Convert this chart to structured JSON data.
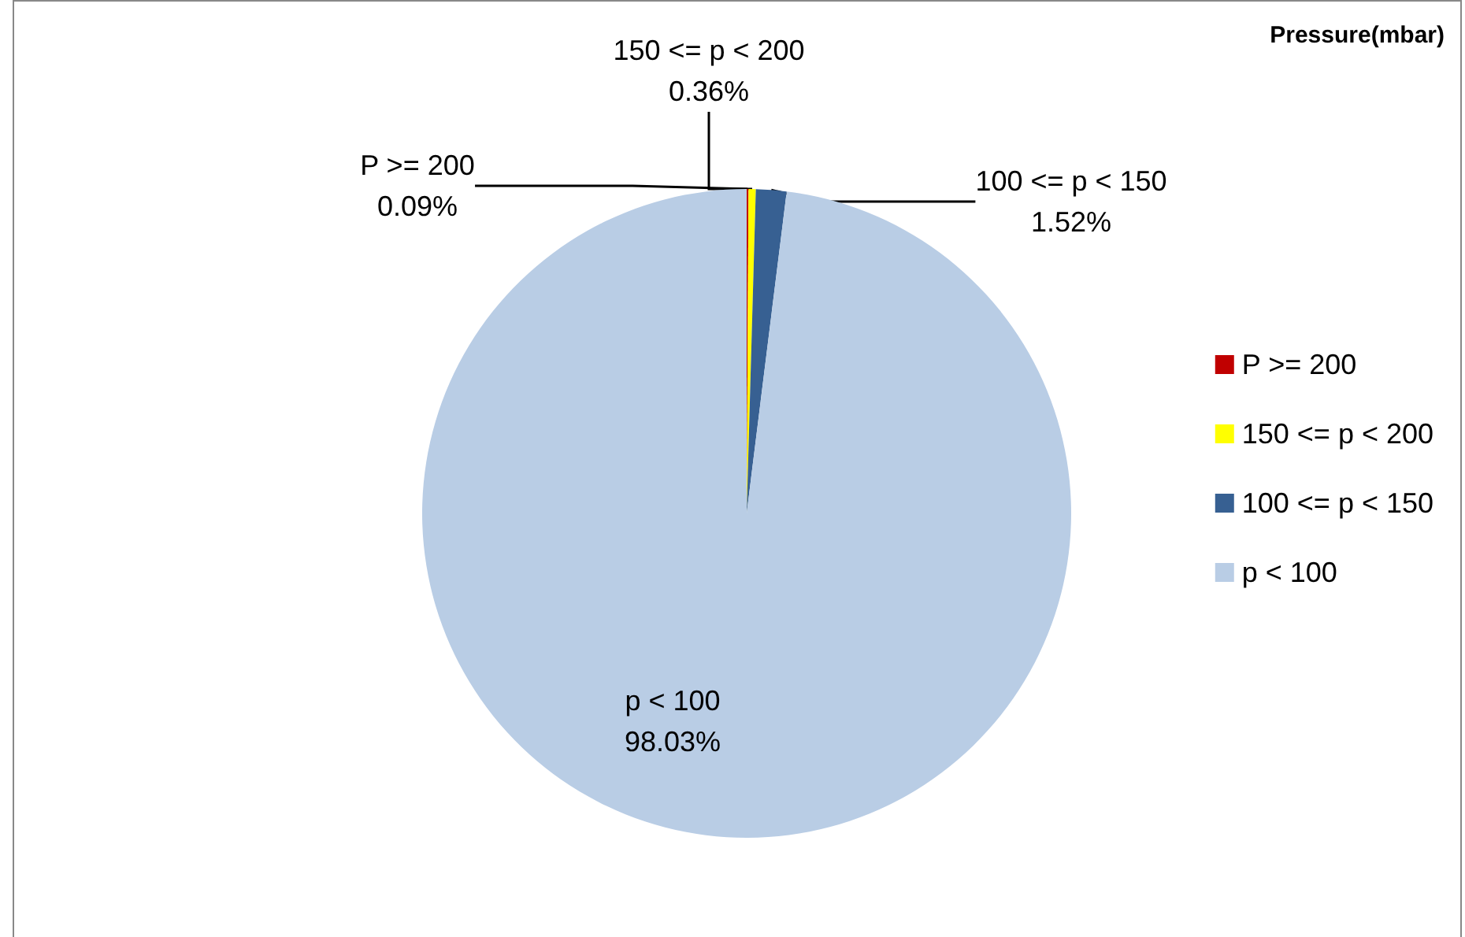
{
  "chart_data": {
    "type": "pie",
    "legend_title": "Pressure(mbar)",
    "categories": [
      "P >= 200",
      "150 <= p < 200",
      "100 <= p < 150",
      "p < 100"
    ],
    "values": [
      0.09,
      0.36,
      1.52,
      98.03
    ],
    "value_labels": [
      "0.09%",
      "0.36%",
      "1.52%",
      "98.03%"
    ],
    "colors": [
      "#c00000",
      "#ffff00",
      "#376092",
      "#b9cde5"
    ],
    "legend": "right"
  }
}
